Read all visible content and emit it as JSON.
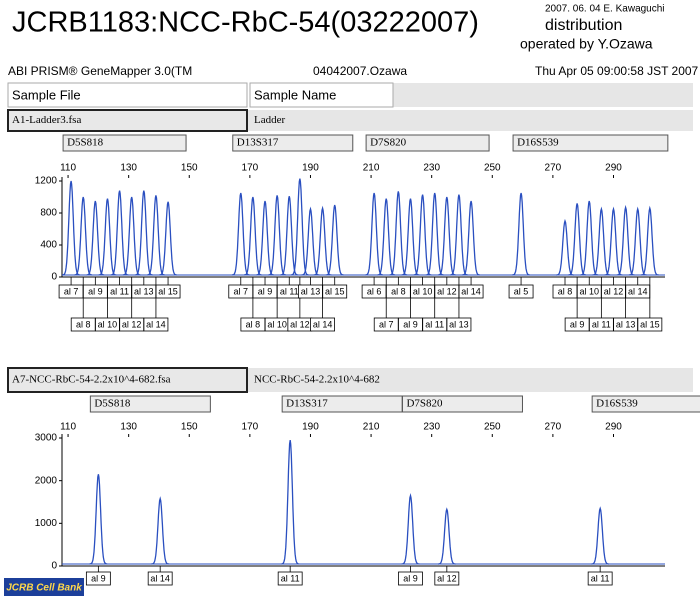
{
  "header": {
    "title": "JCRB1183:NCC-RbC-54(03222007)",
    "date_author": "2007. 06. 04 E. Kawaguchi",
    "subtitle": "distribution",
    "operator": "operated by Y.Ozawa",
    "software": "ABI PRISM® GeneMapper 3.0(TM",
    "run": "04042007.Ozawa",
    "timestamp": "Thu Apr 05 09:00:58 JST 2007"
  },
  "table_header": {
    "sample_file": "Sample File",
    "sample_name": "Sample Name"
  },
  "logo": "JCRB Cell Bank",
  "chart_data": [
    {
      "type": "peaks",
      "sample_file": "A1-Ladder3.fsa",
      "sample_name": "Ladder",
      "color": "#2a4fc0",
      "xlim": [
        108,
        307
      ],
      "xticks": [
        110,
        130,
        150,
        170,
        190,
        210,
        230,
        250,
        270,
        290
      ],
      "ylim": [
        0,
        1200
      ],
      "yticks": [
        0,
        400,
        800,
        1200
      ],
      "markers": [
        {
          "name": "D5S818",
          "sizes": [
            111,
            115,
            119,
            123,
            127,
            131,
            135,
            139,
            143
          ],
          "heights": [
            1200,
            1000,
            950,
            980,
            1080,
            1000,
            1080,
            1020,
            940
          ],
          "alleles": [
            "al 7",
            "al 8",
            "al 9",
            "al 10",
            "al 11",
            "al 12",
            "al 13",
            "al 14",
            "al 15"
          ]
        },
        {
          "name": "D13S317",
          "sizes": [
            167,
            171,
            175,
            179,
            183,
            186.5,
            190,
            194,
            198
          ],
          "heights": [
            1050,
            1000,
            950,
            1020,
            1010,
            1230,
            850,
            860,
            900
          ],
          "alleles": [
            "al 7",
            "al 8",
            "al 9",
            "al 10",
            "al 11",
            "al 12",
            "al 13",
            "al 14",
            "al 15"
          ]
        },
        {
          "name": "D7S820",
          "sizes": [
            211,
            215,
            219,
            223,
            227,
            231,
            235,
            239,
            243
          ],
          "heights": [
            1050,
            980,
            1070,
            980,
            1030,
            1050,
            1000,
            1030,
            950
          ],
          "alleles": [
            "al 6",
            "al 7",
            "al 8",
            "al 9",
            "al 10",
            "al 11",
            "al 12",
            "al 13",
            "al 14"
          ]
        },
        {
          "name": "D16S539",
          "sizes": [
            259.5,
            274,
            278,
            282,
            286,
            290,
            294,
            298,
            302
          ],
          "heights": [
            1050,
            700,
            920,
            950,
            850,
            850,
            870,
            850,
            860
          ],
          "alleles": [
            "al 5",
            "al 8",
            "al 9",
            "al 10",
            "al 11",
            "al 12",
            "al 13",
            "al 14",
            "al 15"
          ]
        }
      ]
    },
    {
      "type": "peaks",
      "sample_file": "A7-NCC-RbC-54-2.2x10^4-682.fsa",
      "sample_name": "NCC-RbC-54-2.2x10^4-682",
      "color": "#2a4fc0",
      "xlim": [
        108,
        307
      ],
      "xticks": [
        110,
        130,
        150,
        170,
        190,
        210,
        230,
        250,
        270,
        290
      ],
      "ylim": [
        0,
        3000
      ],
      "yticks": [
        0,
        1000,
        2000,
        3000
      ],
      "markers": [
        {
          "name": "D5S818",
          "sizes": [
            120,
            140.4
          ],
          "heights": [
            2150,
            1580
          ],
          "alleles": [
            "al 9",
            "al 14"
          ]
        },
        {
          "name": "D13S317",
          "sizes": [
            183.3
          ],
          "heights": [
            2950
          ],
          "alleles": [
            "al 11"
          ]
        },
        {
          "name": "D7S820",
          "sizes": [
            223,
            235
          ],
          "heights": [
            1650,
            1330
          ],
          "alleles": [
            "al 9",
            "al 12"
          ]
        },
        {
          "name": "D16S539",
          "sizes": [
            285.6
          ],
          "heights": [
            1350
          ],
          "alleles": [
            "al 11"
          ]
        }
      ]
    }
  ]
}
